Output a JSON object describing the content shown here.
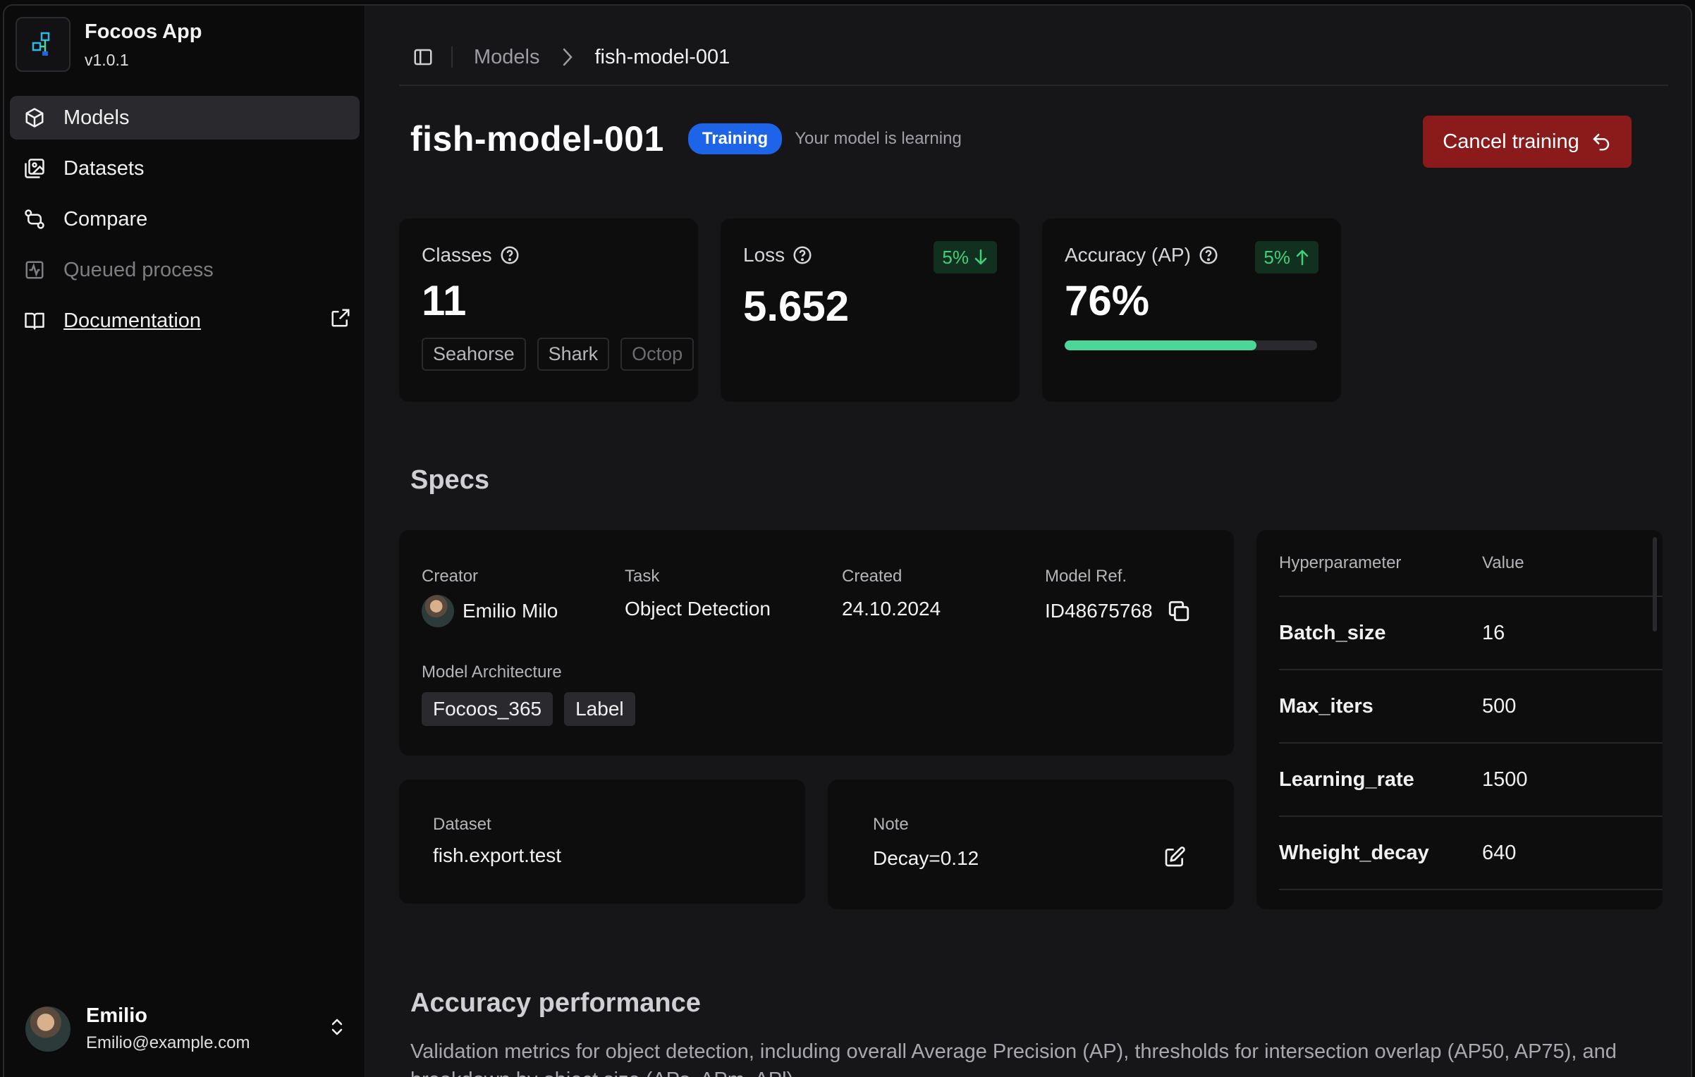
{
  "app": {
    "name": "Focoos App",
    "version": "v1.0.1"
  },
  "sidebar": {
    "items": [
      {
        "label": "Models",
        "icon": "cube-icon"
      },
      {
        "label": "Datasets",
        "icon": "image-stack-icon"
      },
      {
        "label": "Compare",
        "icon": "git-compare-icon"
      },
      {
        "label": "Queued process",
        "icon": "activity-icon"
      },
      {
        "label": "Documentation",
        "icon": "book-icon"
      }
    ]
  },
  "user": {
    "name": "Emilio",
    "email": "Emilio@example.com"
  },
  "breadcrumb": {
    "parent": "Models",
    "current": "fish-model-001"
  },
  "header": {
    "title": "fish-model-001",
    "status": "Training",
    "status_note": "Your model is learning",
    "cancel_label": "Cancel training"
  },
  "colors": {
    "status_badge": "#1d64e8",
    "cancel": "#8b1b1b",
    "progress": "#4cd699",
    "delta": "#3fd07a"
  },
  "stats": {
    "classes": {
      "label": "Classes",
      "value": "11",
      "chips": [
        "Seahorse",
        "Shark",
        "Octop"
      ]
    },
    "loss": {
      "label": "Loss",
      "value": "5.652",
      "delta": "5%",
      "direction": "down"
    },
    "accuracy": {
      "label": "Accuracy (AP)",
      "value": "76%",
      "delta": "5%",
      "direction": "up",
      "progress": 0.76
    }
  },
  "specs": {
    "title": "Specs",
    "creator_label": "Creator",
    "creator": "Emilio Milo",
    "task_label": "Task",
    "task": "Object Detection",
    "created_label": "Created",
    "created": "24.10.2024",
    "ref_label": "Model Ref.",
    "ref": "ID48675768",
    "arch_label": "Model Architecture",
    "arch_tags": [
      "Focoos_365",
      "Label"
    ],
    "dataset_label": "Dataset",
    "dataset": "fish.export.test",
    "note_label": "Note",
    "note": "Decay=0.12"
  },
  "hyperparams": {
    "col_name": "Hyperparameter",
    "col_value": "Value",
    "rows": [
      {
        "name": "Batch_size",
        "value": "16"
      },
      {
        "name": "Max_iters",
        "value": "500"
      },
      {
        "name": "Learning_rate",
        "value": "1500"
      },
      {
        "name": "Wheight_decay",
        "value": "640"
      }
    ]
  },
  "accuracy_section": {
    "title": "Accuracy performance",
    "description": "Validation metrics for object detection, including overall Average Precision (AP), thresholds for intersection overlap (AP50, AP75), and breakdown by object size (APs, APm, APl)."
  }
}
